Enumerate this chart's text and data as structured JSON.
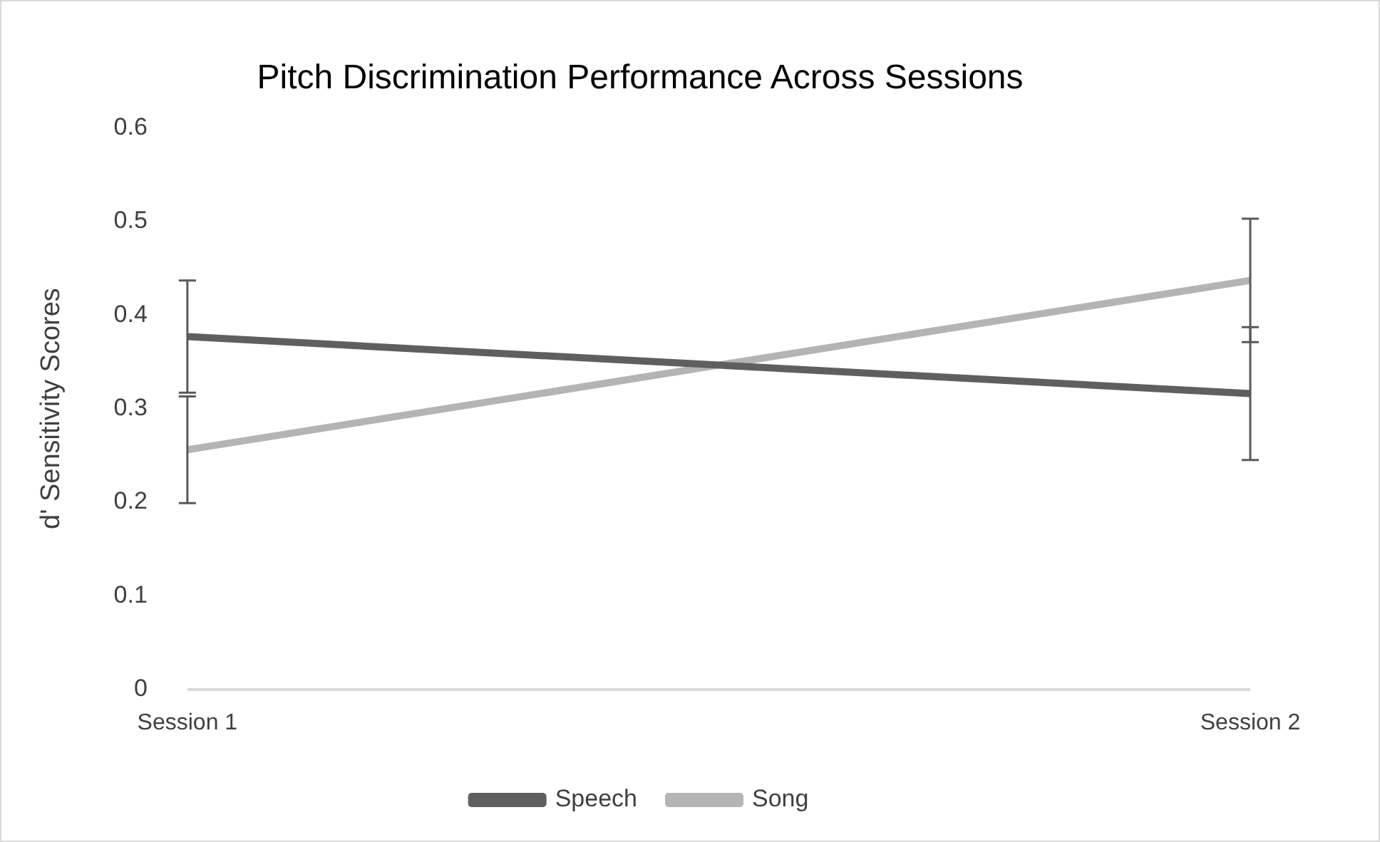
{
  "chart_data": {
    "type": "line",
    "title": "Pitch Discrimination Performance Across Sessions",
    "ylabel": "d' Sensitivity Scores",
    "categories": [
      "Session 1",
      "Session 2"
    ],
    "series": [
      {
        "name": "Speech",
        "color": "#5f5f5f",
        "values": [
          0.377,
          0.316
        ],
        "errors": [
          0.06,
          0.071
        ]
      },
      {
        "name": "Song",
        "color": "#b4b4b4",
        "values": [
          0.256,
          0.437
        ],
        "errors": [
          0.057,
          0.066
        ]
      }
    ],
    "ylim": [
      0,
      0.6
    ],
    "yticks": [
      0,
      0.1,
      0.2,
      0.3,
      0.4,
      0.5,
      0.6
    ],
    "grid": false,
    "legend": "bottom",
    "marker": "none",
    "line_style": "solid"
  }
}
